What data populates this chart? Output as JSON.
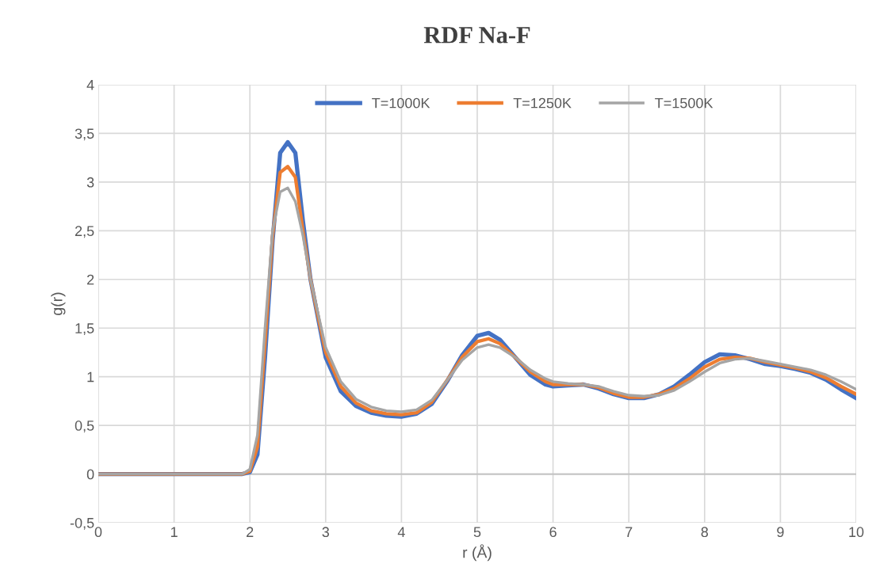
{
  "chart_data": {
    "type": "line",
    "title": "RDF Na-F",
    "xlabel": "r (Å)",
    "ylabel": "g(r)",
    "x": [
      0,
      1.9,
      2.0,
      2.1,
      2.2,
      2.3,
      2.4,
      2.5,
      2.6,
      2.7,
      2.8,
      2.9,
      3.0,
      3.2,
      3.4,
      3.6,
      3.8,
      4.0,
      4.2,
      4.4,
      4.6,
      4.8,
      5.0,
      5.15,
      5.3,
      5.5,
      5.7,
      5.9,
      6.0,
      6.2,
      6.4,
      6.6,
      6.8,
      7.0,
      7.2,
      7.4,
      7.6,
      7.8,
      8.0,
      8.2,
      8.4,
      8.6,
      8.8,
      9.0,
      9.2,
      9.4,
      9.6,
      9.8,
      10.0
    ],
    "series": [
      {
        "name": "T=1000K",
        "color": "#4472c4",
        "values": [
          0,
          0,
          0.02,
          0.2,
          1.2,
          2.4,
          3.3,
          3.41,
          3.3,
          2.6,
          2.0,
          1.6,
          1.2,
          0.85,
          0.7,
          0.63,
          0.6,
          0.59,
          0.62,
          0.72,
          0.95,
          1.22,
          1.42,
          1.45,
          1.38,
          1.2,
          1.02,
          0.92,
          0.9,
          0.91,
          0.92,
          0.88,
          0.82,
          0.78,
          0.78,
          0.82,
          0.9,
          1.02,
          1.15,
          1.23,
          1.22,
          1.18,
          1.13,
          1.11,
          1.08,
          1.04,
          0.97,
          0.87,
          0.78
        ]
      },
      {
        "name": "T=1250K",
        "color": "#ed7d31",
        "values": [
          0,
          0,
          0.03,
          0.28,
          1.35,
          2.45,
          3.1,
          3.16,
          3.05,
          2.5,
          2.0,
          1.62,
          1.25,
          0.9,
          0.73,
          0.65,
          0.62,
          0.61,
          0.63,
          0.74,
          0.96,
          1.2,
          1.36,
          1.39,
          1.34,
          1.2,
          1.05,
          0.95,
          0.92,
          0.92,
          0.92,
          0.89,
          0.83,
          0.79,
          0.79,
          0.82,
          0.88,
          0.98,
          1.1,
          1.18,
          1.2,
          1.19,
          1.15,
          1.12,
          1.09,
          1.05,
          0.99,
          0.9,
          0.82
        ]
      },
      {
        "name": "T=1500K",
        "color": "#a5a5a5",
        "values": [
          0,
          0,
          0.05,
          0.4,
          1.5,
          2.5,
          2.9,
          2.94,
          2.8,
          2.45,
          2.0,
          1.65,
          1.3,
          0.95,
          0.77,
          0.69,
          0.65,
          0.64,
          0.66,
          0.76,
          0.96,
          1.17,
          1.3,
          1.33,
          1.3,
          1.2,
          1.07,
          0.98,
          0.95,
          0.93,
          0.92,
          0.9,
          0.85,
          0.81,
          0.8,
          0.81,
          0.86,
          0.95,
          1.05,
          1.14,
          1.18,
          1.19,
          1.16,
          1.13,
          1.1,
          1.07,
          1.02,
          0.95,
          0.87
        ]
      }
    ],
    "xlim": [
      0,
      10
    ],
    "xticks": [
      0,
      1,
      2,
      3,
      4,
      5,
      6,
      7,
      8,
      9,
      10
    ],
    "ylim": [
      -0.5,
      4
    ],
    "yticks": [
      {
        "value": -0.5,
        "label": "-0,5"
      },
      0,
      {
        "value": 0.5,
        "label": "0,5"
      },
      1,
      {
        "value": 1.5,
        "label": "1,5"
      },
      2,
      {
        "value": 2.5,
        "label": "2,5"
      },
      3,
      {
        "value": 3.5,
        "label": "3,5"
      },
      4
    ],
    "grid": true,
    "legend": "top",
    "marker": "none",
    "line_style": "solid"
  }
}
